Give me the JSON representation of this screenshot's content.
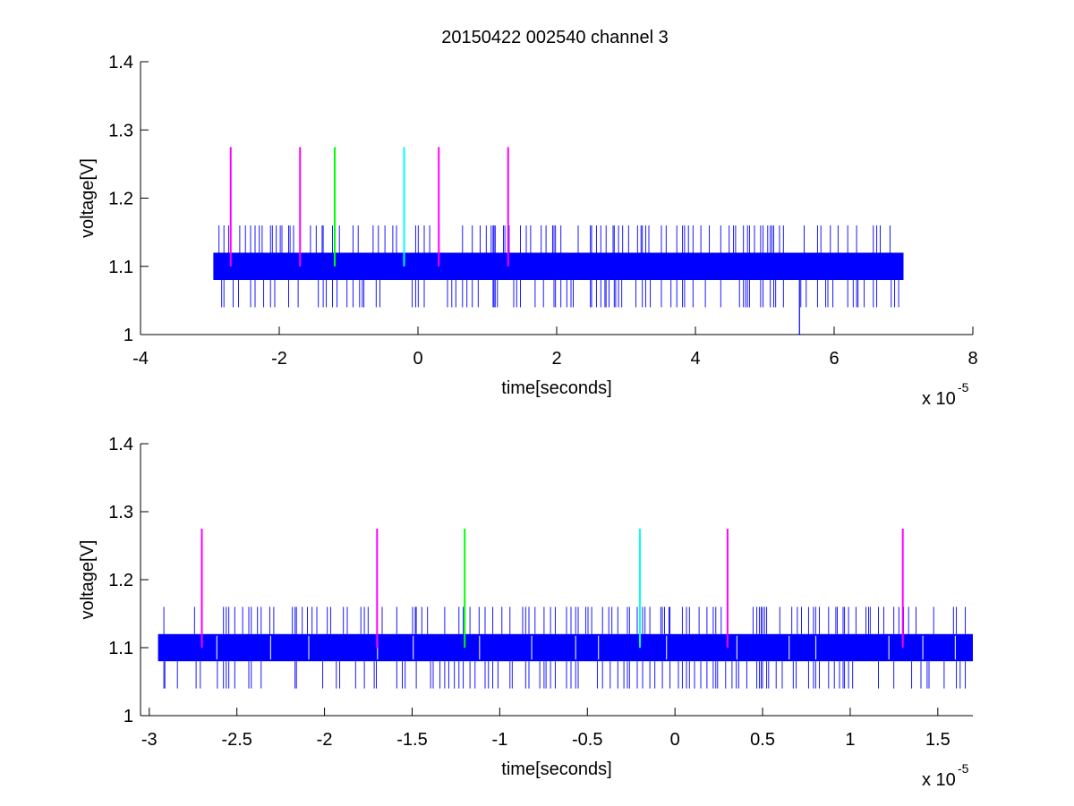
{
  "figure_title": "20150422 002540 channel 3",
  "colors": {
    "signal": "#0000ff",
    "marker_magenta": "#ff00ff",
    "marker_green": "#00ff00",
    "marker_cyan": "#00ffff",
    "axes": "#000000",
    "background": "#ffffff"
  },
  "chart_data": [
    {
      "type": "line",
      "title": "20150422 002540 channel 3",
      "xlabel": "time[seconds]",
      "ylabel": "voltage[V]",
      "xlim": [
        -4,
        8
      ],
      "ylim": [
        1,
        1.4
      ],
      "x_multiplier": "x 10",
      "x_multiplier_exp": "-5",
      "xticks": [
        -4,
        -2,
        0,
        2,
        4,
        6,
        8
      ],
      "xtick_labels": [
        "-4",
        "-2",
        "0",
        "2",
        "4",
        "6",
        "8"
      ],
      "yticks": [
        1,
        1.1,
        1.2,
        1.3,
        1.4
      ],
      "ytick_labels": [
        "1",
        "1.1",
        "1.2",
        "1.3",
        "1.4"
      ],
      "grid": false,
      "series": [
        {
          "x_range": [
            -2.95,
            7.0
          ],
          "levels": [
            1.08,
            1.12
          ],
          "high_spike": 1.16,
          "low_spike": 1.04,
          "min_dip": {
            "x": 5.5,
            "y": 1.0
          }
        }
      ],
      "markers": [
        {
          "x": -2.7,
          "y_range": [
            1.1,
            1.275
          ],
          "color": "magenta"
        },
        {
          "x": -1.7,
          "y_range": [
            1.1,
            1.275
          ],
          "color": "magenta"
        },
        {
          "x": -1.2,
          "y_range": [
            1.1,
            1.275
          ],
          "color": "green"
        },
        {
          "x": -0.2,
          "y_range": [
            1.1,
            1.275
          ],
          "color": "cyan"
        },
        {
          "x": 0.3,
          "y_range": [
            1.1,
            1.275
          ],
          "color": "magenta"
        },
        {
          "x": 1.3,
          "y_range": [
            1.1,
            1.275
          ],
          "color": "magenta"
        }
      ]
    },
    {
      "type": "line",
      "title": "",
      "xlabel": "time[seconds]",
      "ylabel": "voltage[V]",
      "xlim": [
        -3.05,
        1.7
      ],
      "ylim": [
        1,
        1.4
      ],
      "x_multiplier": "x 10",
      "x_multiplier_exp": "-5",
      "xticks": [
        -3,
        -2.5,
        -2,
        -1.5,
        -1,
        -0.5,
        0,
        0.5,
        1,
        1.5
      ],
      "xtick_labels": [
        "-3",
        "-2.5",
        "-2",
        "-1.5",
        "-1",
        "-0.5",
        "0",
        "0.5",
        "1",
        "1.5"
      ],
      "yticks": [
        1,
        1.1,
        1.2,
        1.3,
        1.4
      ],
      "ytick_labels": [
        "1",
        "1.1",
        "1.2",
        "1.3",
        "1.4"
      ],
      "grid": false,
      "series": [
        {
          "x_range": [
            -2.95,
            1.7
          ],
          "levels": [
            1.08,
            1.12
          ],
          "high_spike": 1.16,
          "low_spike": 1.04
        }
      ],
      "markers": [
        {
          "x": -2.7,
          "y_range": [
            1.1,
            1.275
          ],
          "color": "magenta"
        },
        {
          "x": -1.7,
          "y_range": [
            1.1,
            1.275
          ],
          "color": "magenta"
        },
        {
          "x": -1.2,
          "y_range": [
            1.1,
            1.275
          ],
          "color": "green"
        },
        {
          "x": -0.2,
          "y_range": [
            1.1,
            1.275
          ],
          "color": "cyan"
        },
        {
          "x": 0.3,
          "y_range": [
            1.1,
            1.275
          ],
          "color": "magenta"
        },
        {
          "x": 1.3,
          "y_range": [
            1.1,
            1.275
          ],
          "color": "magenta"
        }
      ]
    }
  ]
}
